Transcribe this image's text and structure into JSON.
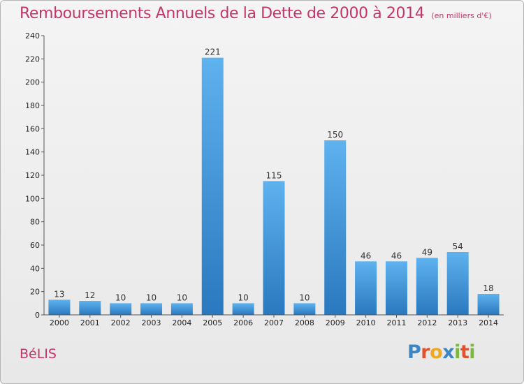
{
  "header": {
    "title": "Remboursements Annuels de la Dette de 2000 à 2014",
    "unit": "(en milliers d'€)"
  },
  "footer": {
    "commune": "BéLIS",
    "logo_letters": [
      "P",
      "r",
      "o",
      "x",
      "i",
      "t",
      "i"
    ],
    "logo_colors": [
      "#3d86c6",
      "#e1532d",
      "#f0a81e",
      "#3d86c6",
      "#7cb83d",
      "#e1532d",
      "#7cb83d"
    ]
  },
  "colors": {
    "title": "#c4356a",
    "bar_top": "#5eb2ee",
    "bar_bottom": "#2a78bf"
  },
  "chart_data": {
    "type": "bar",
    "title": "Remboursements Annuels de la Dette de 2000 à 2014",
    "xlabel": "",
    "ylabel": "",
    "categories": [
      "2000",
      "2001",
      "2002",
      "2003",
      "2004",
      "2005",
      "2006",
      "2007",
      "2008",
      "2009",
      "2010",
      "2011",
      "2012",
      "2013",
      "2014"
    ],
    "values": [
      13,
      12,
      10,
      10,
      10,
      221,
      10,
      115,
      10,
      150,
      46,
      46,
      49,
      54,
      18
    ],
    "ylim": [
      0,
      240
    ],
    "yticks": [
      0,
      20,
      40,
      60,
      80,
      100,
      120,
      140,
      160,
      180,
      200,
      220,
      240
    ],
    "grid": false,
    "legend": "none"
  }
}
